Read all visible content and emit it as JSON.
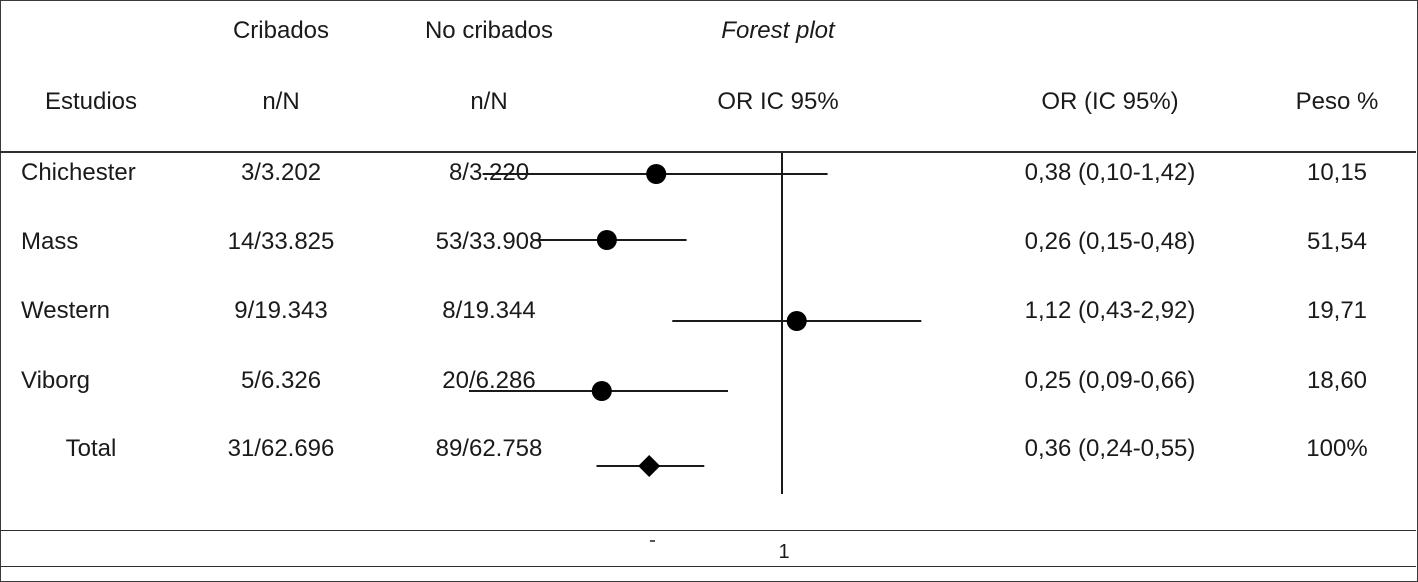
{
  "table": {
    "group_header_1": "Cribados",
    "group_header_2": "No cribados",
    "group_header_3": "Forest plot",
    "col_studies": "Estudios",
    "col_screened": "n/N",
    "col_unscreened": "n/N",
    "col_plot": "OR IC 95%",
    "col_or": "OR (IC 95%)",
    "col_weight": "Peso %",
    "footer_marker": "1"
  },
  "chart_data": {
    "type": "forest",
    "reference_line": 1,
    "rows": [
      {
        "study": "Chichester",
        "screened": "3/3.202",
        "unscreened": "8/3.220",
        "or": 0.38,
        "ci_low": 0.1,
        "ci_high": 1.42,
        "or_text": "0,38 (0,10-1,42)",
        "weight": "10,15",
        "marker": "circle"
      },
      {
        "study": "Mass",
        "screened": "14/33.825",
        "unscreened": "53/33.908",
        "or": 0.26,
        "ci_low": 0.15,
        "ci_high": 0.48,
        "or_text": "0,26 (0,15-0,48)",
        "weight": "51,54",
        "marker": "circle"
      },
      {
        "study": "Western",
        "screened": "9/19.343",
        "unscreened": "8/19.344",
        "or": 1.12,
        "ci_low": 0.43,
        "ci_high": 2.92,
        "or_text": "1,12 (0,43-2,92)",
        "weight": "19,71",
        "marker": "circle"
      },
      {
        "study": "Viborg",
        "screened": "5/6.326",
        "unscreened": "20/6.286",
        "or": 0.25,
        "ci_low": 0.09,
        "ci_high": 0.66,
        "or_text": "0,25 (0,09-0,66)",
        "weight": "18,60",
        "marker": "circle"
      },
      {
        "study": "Total",
        "screened": "31/62.696",
        "unscreened": "89/62.758",
        "or": 0.36,
        "ci_low": 0.24,
        "ci_high": 0.55,
        "or_text": "0,36 (0,24-0,55)",
        "weight": "100%",
        "marker": "diamond"
      }
    ]
  }
}
